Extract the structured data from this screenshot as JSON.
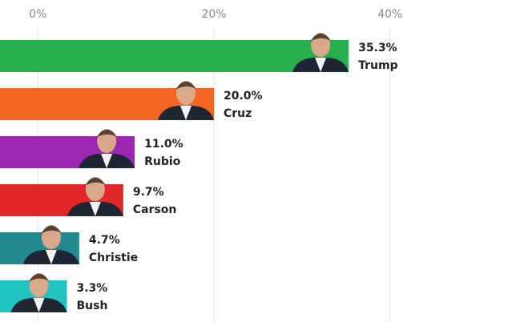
{
  "chart_data": {
    "type": "bar",
    "orientation": "horizontal",
    "categories": [
      "Trump",
      "Cruz",
      "Rubio",
      "Carson",
      "Christie",
      "Bush"
    ],
    "values": [
      35.3,
      20.0,
      11.0,
      9.7,
      4.7,
      3.3
    ],
    "value_labels": [
      "35.3%",
      "20.0%",
      "11.0%",
      "9.7%",
      "4.7%",
      "3.3%"
    ],
    "colors": [
      "#27ae4f",
      "#f26522",
      "#9b27b0",
      "#e0282a",
      "#23898e",
      "#22c2c2"
    ],
    "xlim": [
      -4.3,
      53.4
    ],
    "xticks": [
      {
        "value": 0,
        "label": "0%"
      },
      {
        "value": 20,
        "label": "20%"
      },
      {
        "value": 40,
        "label": "40%"
      }
    ],
    "grid": true
  }
}
